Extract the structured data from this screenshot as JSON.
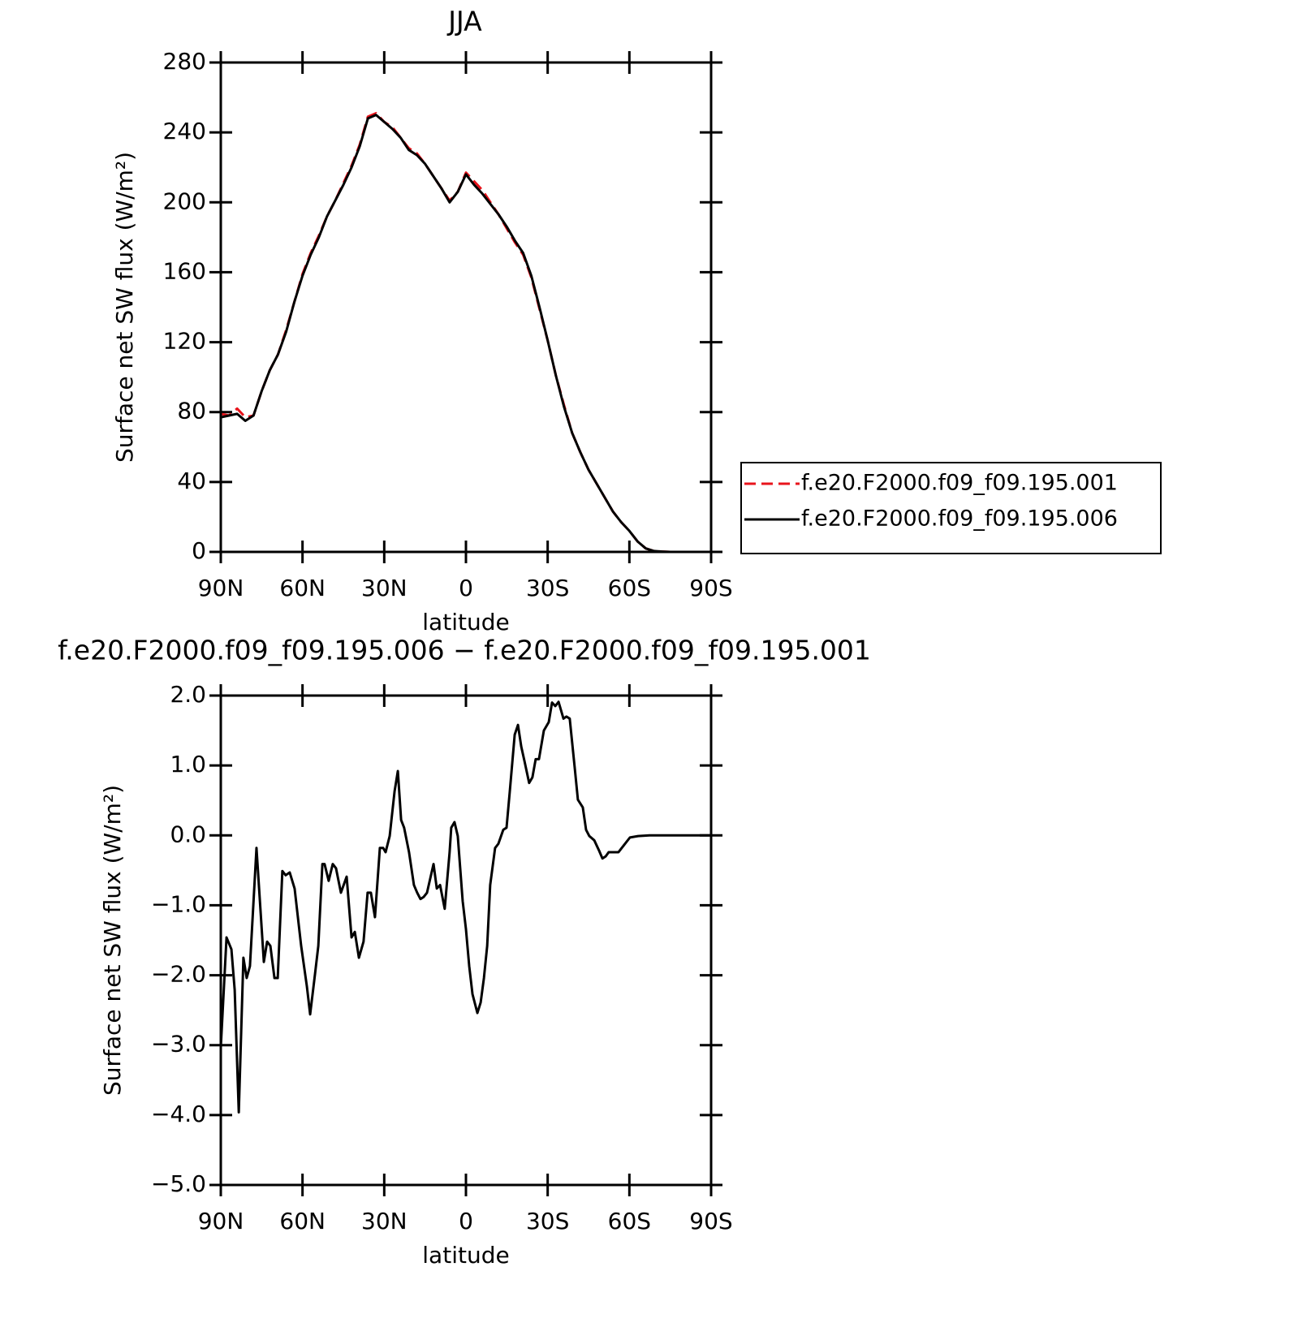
{
  "chart_data": [
    {
      "type": "line",
      "title": "JJA",
      "x_label": "latitude",
      "y_label": "Surface net SW flux (W/m²)",
      "x": [
        90,
        87,
        84,
        81,
        78,
        75,
        72,
        69,
        66,
        63,
        60,
        57,
        54,
        51,
        48,
        45,
        42,
        39,
        36,
        33,
        30,
        27,
        24,
        21,
        18,
        15,
        12,
        9,
        6,
        3,
        0,
        -3,
        -6,
        -9,
        -12,
        -15,
        -18,
        -21,
        -24,
        -27,
        -30,
        -33,
        -36,
        -39,
        -42,
        -45,
        -48,
        -51,
        -54,
        -57,
        -60,
        -63,
        -66,
        -69,
        -72,
        -75,
        -78,
        -81,
        -84,
        -87,
        -90
      ],
      "series": [
        {
          "name": "f.e20.F2000.f09_f09.195.001",
          "color": "#e8141c",
          "linestyle": "dashed",
          "values": [
            79,
            78,
            82,
            77,
            78,
            92,
            104,
            113,
            127,
            143,
            159,
            171,
            181,
            192,
            201,
            211,
            221,
            233,
            249,
            251,
            246,
            243,
            237,
            231,
            228,
            222,
            215,
            208,
            201,
            206,
            217,
            212,
            207,
            200,
            193,
            185,
            177,
            170,
            157,
            139,
            121,
            101,
            84,
            68,
            57,
            47,
            39,
            31,
            23,
            17,
            12,
            6,
            2,
            0.5,
            0.2,
            0,
            0,
            0,
            0,
            0,
            0
          ]
        },
        {
          "name": "f.e20.F2000.f09_f09.195.006",
          "color": "#000000",
          "linestyle": "solid",
          "values": [
            77,
            78,
            79,
            75,
            78,
            92,
            104,
            113,
            126,
            143,
            158,
            170,
            180,
            192,
            201,
            210,
            220,
            232,
            248,
            250,
            246,
            242,
            237,
            230,
            227,
            222,
            215,
            208,
            200,
            206,
            216,
            210,
            205,
            199,
            193,
            186,
            178,
            171,
            158,
            140,
            121,
            101,
            83,
            68,
            57,
            47,
            39,
            31,
            23,
            17,
            12,
            6,
            2,
            0.5,
            0.2,
            0,
            0,
            0,
            0,
            0,
            0
          ]
        }
      ],
      "xlim": [
        90,
        -90
      ],
      "xticks": [
        {
          "value": 90,
          "label": "90N"
        },
        {
          "value": 60,
          "label": "60N"
        },
        {
          "value": 30,
          "label": "30N"
        },
        0,
        {
          "value": -30,
          "label": "30S"
        },
        {
          "value": -60,
          "label": "60S"
        },
        {
          "value": -90,
          "label": "90S"
        }
      ],
      "ylim": [
        0,
        280
      ],
      "yticks": [
        0,
        40,
        80,
        120,
        160,
        200,
        240,
        280
      ],
      "legend": "right"
    },
    {
      "type": "line",
      "title": "f.e20.F2000.f09_f09.195.006 − f.e20.F2000.f09_f09.195.001",
      "x_label": "latitude",
      "y_label": "Surface net SW flux (W/m²)",
      "x": [
        90,
        87.9,
        86.1,
        84.9,
        83.4,
        81.7,
        80.5,
        79.3,
        76.9,
        74.2,
        73.0,
        71.8,
        70.3,
        69.1,
        67.4,
        66.2,
        64.7,
        62.9,
        60.5,
        58.4,
        57.2,
        55.4,
        54.2,
        52.7,
        51.9,
        50.4,
        48.9,
        47.7,
        45.9,
        43.8,
        42.0,
        40.8,
        39.3,
        37.6,
        36.1,
        34.9,
        33.4,
        31.6,
        30.4,
        29.5,
        28.0,
        26.2,
        25.0,
        23.8,
        22.7,
        20.9,
        19.1,
        17.9,
        16.7,
        15.5,
        14.3,
        11.9,
        10.7,
        9.5,
        7.8,
        6.0,
        5.4,
        4.2,
        3.0,
        1.2,
        0.0,
        -1.2,
        -2.4,
        -4.2,
        -5.4,
        -6.6,
        -7.8,
        -8.9,
        -10.7,
        -11.9,
        -13.7,
        -14.9,
        -16.1,
        -17.9,
        -19.1,
        -20.3,
        -21.5,
        -23.2,
        -24.4,
        -25.6,
        -26.8,
        -28.6,
        -30.4,
        -31.6,
        -32.8,
        -34.0,
        -35.8,
        -36.9,
        -38.1,
        -39.9,
        -41.1,
        -42.9,
        -44.1,
        -45.3,
        -47.1,
        -48.9,
        -50.1,
        -51.3,
        -52.4,
        -54.2,
        -56.0,
        -57.8,
        -60.2,
        -63.2,
        -67.4,
        -90
      ],
      "color": "#000000",
      "values": [
        -3.03,
        -1.46,
        -1.63,
        -2.21,
        -3.96,
        -1.75,
        -2.04,
        -1.87,
        -0.18,
        -1.81,
        -1.52,
        -1.58,
        -2.04,
        -2.04,
        -0.51,
        -0.57,
        -0.53,
        -0.76,
        -1.58,
        -2.16,
        -2.56,
        -1.98,
        -1.58,
        -0.41,
        -0.41,
        -0.65,
        -0.41,
        -0.47,
        -0.82,
        -0.59,
        -1.46,
        -1.38,
        -1.75,
        -1.52,
        -0.82,
        -0.82,
        -1.17,
        -0.18,
        -0.18,
        -0.24,
        -0.01,
        0.63,
        0.92,
        0.22,
        0.11,
        -0.24,
        -0.71,
        -0.82,
        -0.91,
        -0.88,
        -0.82,
        -0.41,
        -0.76,
        -0.71,
        -1.05,
        -0.24,
        0.11,
        0.19,
        -0.01,
        -0.94,
        -1.34,
        -1.87,
        -2.27,
        -2.54,
        -2.39,
        -2.04,
        -1.58,
        -0.71,
        -0.18,
        -0.12,
        0.08,
        0.11,
        0.63,
        1.44,
        1.58,
        1.27,
        1.06,
        0.75,
        0.83,
        1.09,
        1.09,
        1.5,
        1.62,
        1.9,
        1.85,
        1.91,
        1.67,
        1.7,
        1.67,
        0.98,
        0.51,
        0.4,
        0.08,
        -0.01,
        -0.07,
        -0.22,
        -0.33,
        -0.3,
        -0.24,
        -0.24,
        -0.24,
        -0.15,
        -0.03,
        -0.01,
        0,
        0
      ],
      "xlim": [
        90,
        -90
      ],
      "xticks": [
        {
          "value": 90,
          "label": "90N"
        },
        {
          "value": 60,
          "label": "60N"
        },
        {
          "value": 30,
          "label": "30N"
        },
        0,
        {
          "value": -30,
          "label": "30S"
        },
        {
          "value": -60,
          "label": "60S"
        },
        {
          "value": -90,
          "label": "90S"
        }
      ],
      "ylim": [
        -5,
        2
      ],
      "yticks": [
        {
          "value": -5,
          "label": "−5.0"
        },
        {
          "value": -4,
          "label": "−4.0"
        },
        {
          "value": -3,
          "label": "−3.0"
        },
        {
          "value": -2,
          "label": "−2.0"
        },
        {
          "value": -1,
          "label": "−1.0"
        },
        {
          "value": 0,
          "label": "0.0"
        },
        {
          "value": 1,
          "label": "1.0"
        },
        {
          "value": 2,
          "label": "2.0"
        }
      ]
    }
  ]
}
